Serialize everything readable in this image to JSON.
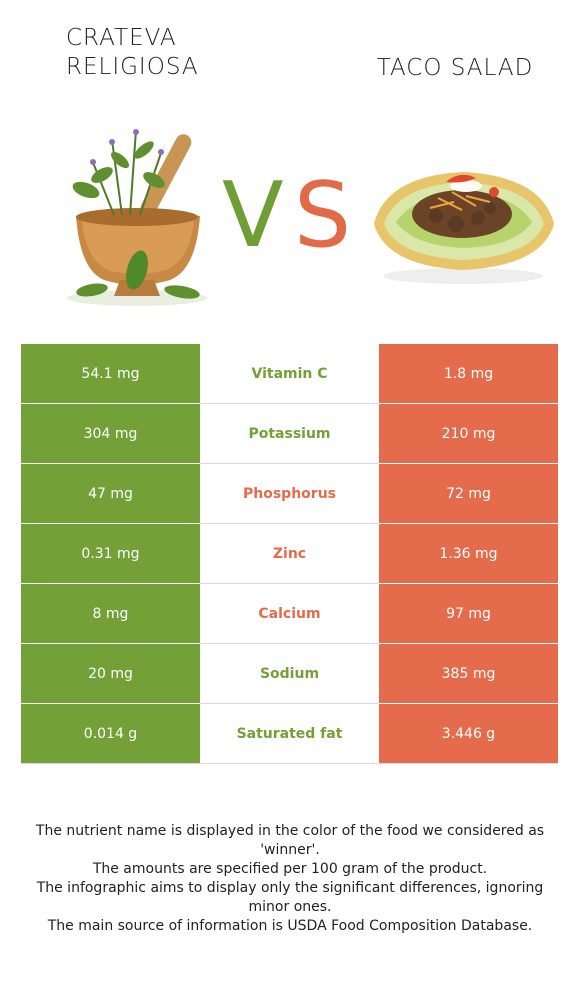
{
  "foods": {
    "left": {
      "name": "CRATEVA\nRELIGIOSA",
      "color": "#73a037",
      "image": "mortar-herbs-image"
    },
    "right": {
      "name": "TACO SALAD",
      "color": "#e46b4b",
      "image": "taco-salad-image"
    }
  },
  "vs": {
    "v": "V",
    "s": "S"
  },
  "rows": [
    {
      "left": "54.1 mg",
      "nutrient": "Vitamin C",
      "right": "1.8 mg",
      "winner": "left"
    },
    {
      "left": "304 mg",
      "nutrient": "Potassium",
      "right": "210 mg",
      "winner": "left"
    },
    {
      "left": "47 mg",
      "nutrient": "Phosphorus",
      "right": "72 mg",
      "winner": "right"
    },
    {
      "left": "0.31 mg",
      "nutrient": "Zinc",
      "right": "1.36 mg",
      "winner": "right"
    },
    {
      "left": "8 mg",
      "nutrient": "Calcium",
      "right": "97 mg",
      "winner": "right"
    },
    {
      "left": "20 mg",
      "nutrient": "Sodium",
      "right": "385 mg",
      "winner": "left"
    },
    {
      "left": "0.014 g",
      "nutrient": "Saturated fat",
      "right": "3.446 g",
      "winner": "left"
    }
  ],
  "notes": [
    "The nutrient name is displayed in the color of the food we considered as 'winner'.",
    "The amounts are specified per 100 gram of the product.",
    "The infographic aims to display only the significant differences, ignoring minor ones.",
    "The main source of information is USDA Food Composition Database."
  ]
}
